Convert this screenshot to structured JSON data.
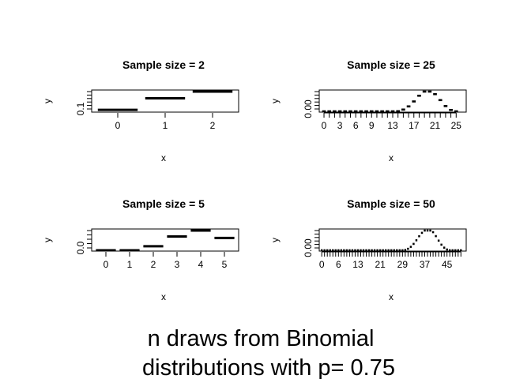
{
  "figure": {
    "title_line1": "n draws from Binomial",
    "title_line2": "distributions with p=  0.75"
  },
  "chart_data": [
    {
      "type": "bar",
      "title": "Sample size =  2",
      "xlabel": "x",
      "ylabel": "y",
      "x_ticks": [
        "0",
        "1",
        "2"
      ],
      "y_ticks": [
        "0.1"
      ],
      "x": [
        0,
        1,
        2
      ],
      "values": [
        0.0625,
        0.375,
        0.5625
      ],
      "xlim": [
        -0.55,
        2.55
      ],
      "ylim": [
        0,
        0.6
      ],
      "y_minor_count": 6,
      "x_minor_count": 0
    },
    {
      "type": "bar",
      "title": "Sample size =  25",
      "xlabel": "x",
      "ylabel": "y",
      "x_ticks": [
        "0",
        "3",
        "6",
        "9",
        "13",
        "17",
        "21",
        "25"
      ],
      "y_ticks": [
        "0.00"
      ],
      "x": [
        0,
        1,
        2,
        3,
        4,
        5,
        6,
        7,
        8,
        9,
        10,
        11,
        12,
        13,
        14,
        15,
        16,
        17,
        18,
        19,
        20,
        21,
        22,
        23,
        24,
        25
      ],
      "values": [
        0,
        0,
        0,
        0,
        0,
        0,
        0,
        0,
        0,
        0,
        0,
        0.0001,
        0.0005,
        0.0018,
        0.0058,
        0.0161,
        0.0362,
        0.0676,
        0.1038,
        0.1311,
        0.1358,
        0.114,
        0.0761,
        0.0384,
        0.0136,
        0.0025
      ],
      "xlim": [
        -0.9,
        26.9
      ],
      "ylim": [
        0,
        0.14
      ],
      "y_minor_count": 6,
      "x_minor_count": 26
    },
    {
      "type": "bar",
      "title": "Sample size =  5",
      "xlabel": "x",
      "ylabel": "y",
      "x_ticks": [
        "0",
        "1",
        "2",
        "3",
        "4",
        "5"
      ],
      "y_ticks": [
        "0.0"
      ],
      "x": [
        0,
        1,
        2,
        3,
        4,
        5
      ],
      "values": [
        0.001,
        0.015,
        0.088,
        0.264,
        0.396,
        0.237
      ],
      "xlim": [
        -0.6,
        5.6
      ],
      "ylim": [
        0,
        0.4
      ],
      "y_minor_count": 5,
      "x_minor_count": 0
    },
    {
      "type": "bar",
      "title": "Sample size =  50",
      "xlabel": "x",
      "ylabel": "y",
      "x_ticks": [
        "0",
        "6",
        "13",
        "21",
        "29",
        "37",
        "45"
      ],
      "y_ticks": [
        "0.00"
      ],
      "x": [
        0,
        1,
        2,
        3,
        4,
        5,
        6,
        7,
        8,
        9,
        10,
        11,
        12,
        13,
        14,
        15,
        16,
        17,
        18,
        19,
        20,
        21,
        22,
        23,
        24,
        25,
        26,
        27,
        28,
        29,
        30,
        31,
        32,
        33,
        34,
        35,
        36,
        37,
        38,
        39,
        40,
        41,
        42,
        43,
        44,
        45,
        46,
        47,
        48,
        49,
        50
      ],
      "values": [
        0,
        0,
        0,
        0,
        0,
        0,
        0,
        0,
        0,
        0,
        0,
        0,
        0,
        0,
        0,
        0,
        0,
        0,
        0,
        0,
        0,
        0,
        0,
        0,
        0,
        0,
        0.0001,
        0.0003,
        0.0009,
        0.0022,
        0.0051,
        0.0108,
        0.0202,
        0.0341,
        0.0513,
        0.0706,
        0.0867,
        0.0982,
        0.1032,
        0.0992,
        0.0898,
        0.071,
        0.0496,
        0.0304,
        0.0163,
        0.0075,
        0.003,
        0.001,
        0.0003,
        0.0001,
        0
      ],
      "xlim": [
        -0.9,
        51.9
      ],
      "ylim": [
        0,
        0.105
      ],
      "y_minor_count": 6,
      "x_minor_count": 51
    }
  ]
}
